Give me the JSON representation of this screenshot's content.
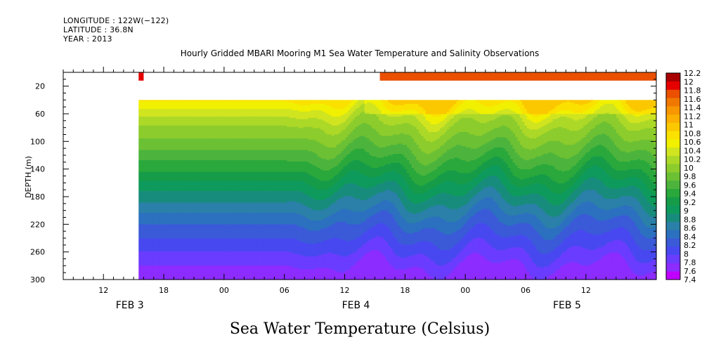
{
  "header": {
    "longitude": "LONGITUDE : 122W(−122)",
    "latitude": "LATITUDE : 36.8N",
    "year": "YEAR : 2013"
  },
  "chart_data": {
    "type": "heatmap",
    "title": "Hourly Gridded MBARI Mooring M1 Sea Water Temperature and Salinity Observations",
    "subtitle": "Sea Water Temperature (Celsius)",
    "ylabel": "DEPTH (m)",
    "xlabel": "",
    "y_axis": {
      "range": [
        300,
        0
      ],
      "ticks": [
        20,
        60,
        100,
        140,
        180,
        220,
        260,
        300
      ],
      "inverted": true
    },
    "x_axis": {
      "range_hours": [
        0,
        59
      ],
      "start": "FEB 3 08:00",
      "hour_ticks": [
        {
          "h": 4,
          "label": "12"
        },
        {
          "h": 10,
          "label": "18"
        },
        {
          "h": 16,
          "label": "00"
        },
        {
          "h": 22,
          "label": "06"
        },
        {
          "h": 28,
          "label": "12"
        },
        {
          "h": 34,
          "label": "18"
        },
        {
          "h": 40,
          "label": "00"
        },
        {
          "h": 46,
          "label": "06"
        },
        {
          "h": 52,
          "label": "12"
        }
      ],
      "day_labels": [
        {
          "h": 5.5,
          "label": "FEB  3"
        },
        {
          "h": 28,
          "label": "FEB  4"
        },
        {
          "h": 49,
          "label": "FEB  5"
        }
      ]
    },
    "data_start_hour": 7.5,
    "surface_data": [
      {
        "from_h": 7.5,
        "to_h": 8,
        "depth_from": 0,
        "depth_to": 12,
        "value": 12.1
      },
      {
        "from_h": 31.5,
        "to_h": 59,
        "depth_from": 0,
        "depth_to": 12,
        "value": 11.9
      }
    ],
    "profile_top_depth": 40,
    "colorbar": {
      "levels": [
        7.4,
        7.6,
        7.8,
        8,
        8.2,
        8.4,
        8.6,
        8.8,
        9,
        9.2,
        9.4,
        9.6,
        9.8,
        10,
        10.2,
        10.4,
        10.6,
        10.8,
        11,
        11.2,
        11.4,
        11.6,
        11.8,
        12,
        12.2
      ],
      "colors": [
        "#c000ff",
        "#8c2cff",
        "#6a3cff",
        "#4848f0",
        "#3a5ad8",
        "#2c70c0",
        "#2a80a8",
        "#188c7c",
        "#0e9a5c",
        "#169c48",
        "#2aa83c",
        "#4cb43c",
        "#6cc034",
        "#8ccc2c",
        "#acd828",
        "#d0e420",
        "#f0f000",
        "#fbe100",
        "#fbc800",
        "#fbaf00",
        "#f79600",
        "#f07800",
        "#ea5000",
        "#e60000",
        "#a80000"
      ]
    },
    "profile": [
      {
        "depth": 40,
        "value": 10.85
      },
      {
        "depth": 55,
        "value": 10.55
      },
      {
        "depth": 70,
        "value": 10.3
      },
      {
        "depth": 85,
        "value": 10.1
      },
      {
        "depth": 100,
        "value": 9.95
      },
      {
        "depth": 120,
        "value": 9.7
      },
      {
        "depth": 140,
        "value": 9.45
      },
      {
        "depth": 160,
        "value": 9.15
      },
      {
        "depth": 180,
        "value": 8.9
      },
      {
        "depth": 200,
        "value": 8.65
      },
      {
        "depth": 220,
        "value": 8.4
      },
      {
        "depth": 240,
        "value": 8.2
      },
      {
        "depth": 260,
        "value": 8.0
      },
      {
        "depth": 280,
        "value": 7.8
      },
      {
        "depth": 300,
        "value": 7.6
      }
    ]
  }
}
